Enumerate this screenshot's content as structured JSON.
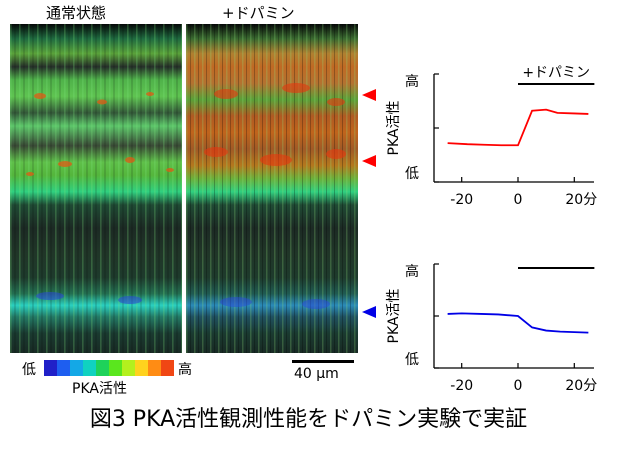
{
  "figure": {
    "panel_left_title": "通常状態",
    "panel_right_title": "+ドパミン",
    "colorbar": {
      "low": "低",
      "high": "高",
      "label": "PKA活性",
      "colors": [
        "#2020c8",
        "#1e5ef0",
        "#14a8e6",
        "#10d2c0",
        "#1ed25a",
        "#5ae61e",
        "#b4f01e",
        "#ffd21e",
        "#ff8c14",
        "#f04614"
      ]
    },
    "scalebar": "40 µm",
    "caption": "図3 PKA活性観測性能をドパミン実験で実証"
  },
  "chart_data": [
    {
      "type": "line",
      "treatment_label": "+ドパミン",
      "ylabel": "PKA活性",
      "y_high": "高",
      "y_low": "低",
      "x_ticks": [
        "-20",
        "0",
        "20"
      ],
      "x_unit": "分",
      "xlim": [
        -27,
        27
      ],
      "ylim": [
        0,
        1
      ],
      "series": [
        {
          "color": "#ff0000",
          "x": [
            -25,
            -18,
            -12,
            -6,
            0,
            5,
            10,
            14,
            20,
            25
          ],
          "y": [
            0.36,
            0.35,
            0.345,
            0.34,
            0.34,
            0.66,
            0.67,
            0.64,
            0.635,
            0.63
          ]
        }
      ]
    },
    {
      "type": "line",
      "treatment_label": "",
      "ylabel": "PKA活性",
      "y_high": "高",
      "y_low": "低",
      "x_ticks": [
        "-20",
        "0",
        "20"
      ],
      "x_unit": "分",
      "xlim": [
        -27,
        27
      ],
      "ylim": [
        0,
        1
      ],
      "series": [
        {
          "color": "#0000e6",
          "x": [
            -25,
            -20,
            -13,
            -7,
            0,
            5,
            10,
            15,
            20,
            25
          ],
          "y": [
            0.52,
            0.525,
            0.52,
            0.515,
            0.5,
            0.39,
            0.36,
            0.35,
            0.345,
            0.34
          ]
        }
      ]
    }
  ]
}
